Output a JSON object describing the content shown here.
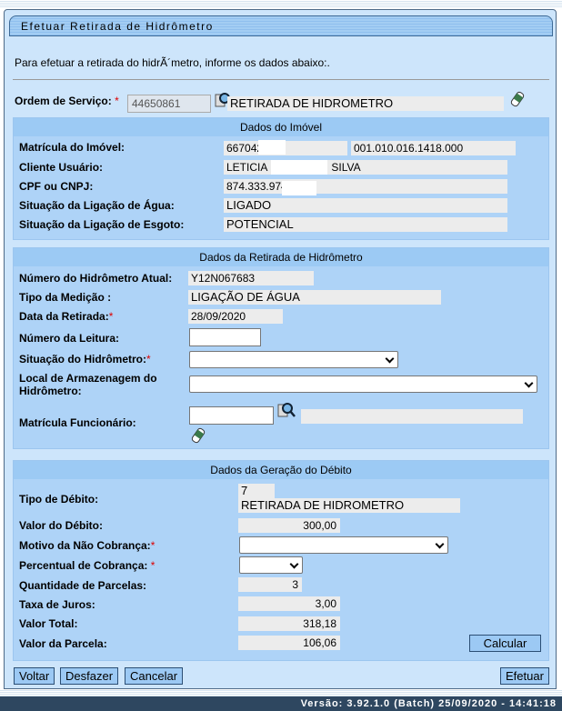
{
  "title": "Efetuar Retirada de  Hidrômetro",
  "intro": "Para efetuar a retirada do hidrÃ´metro, informe os dados abaixo:.",
  "ordem": {
    "label": "Ordem de Serviço:",
    "required": "*",
    "value": "44650861",
    "desc": "RETIRADA DE HIDROMETRO"
  },
  "imovel": {
    "header": "Dados do Imóvel",
    "matricula_label": "Matrícula do Imóvel:",
    "matricula": "667042",
    "inscricao": "001.010.016.1418.000",
    "cliente_label": "Cliente Usuário:",
    "cliente_a": "LETICIA",
    "cliente_b": "SILVA",
    "cpf_label": "CPF ou CNPJ:",
    "cpf": "874.333.974",
    "agua_label": "Situação da Ligação de Água:",
    "agua": "LIGADO",
    "esgoto_label": "Situação da Ligação de Esgoto:",
    "esgoto": "POTENCIAL"
  },
  "retirada": {
    "header": "Dados da Retirada de Hidrômetro",
    "numero_label": "Número do Hidrômetro Atual:",
    "numero": "Y12N067683",
    "tipo_label": "Tipo da Medição :",
    "tipo": "LIGAÇÃO DE ÁGUA",
    "data_label": "Data da Retirada:",
    "data": "28/09/2020",
    "leitura_label": "Número da Leitura:",
    "situacao_label": "Situação do Hidrômetro:",
    "local_label": "Local de Armazenagem do Hidrômetro:",
    "func_label": "Matrícula Funcionário:"
  },
  "debito": {
    "header": "Dados da Geração do Débito",
    "tipo_label": "Tipo de Débito:",
    "tipo_code": "7",
    "tipo": "RETIRADA DE HIDROMETRO",
    "valor_label": "Valor do Débito:",
    "valor": "300,00",
    "motivo_label": "Motivo da Não Cobrança:",
    "percentual_label": "Percentual de Cobrança:",
    "parcelas_label": "Quantidade de Parcelas:",
    "parcelas": "3",
    "juros_label": "Taxa de Juros:",
    "juros": "3,00",
    "total_label": "Valor Total:",
    "total": "318,18",
    "parcela_label": "Valor da Parcela:",
    "parcela": "106,06",
    "calcular": "Calcular"
  },
  "buttons": {
    "voltar": "Voltar",
    "desfazer": "Desfazer",
    "cancelar": "Cancelar",
    "efetuar": "Efetuar"
  },
  "footer": "Versão: 3.92.1.0 (Batch) 25/09/2020 - 14:41:18"
}
